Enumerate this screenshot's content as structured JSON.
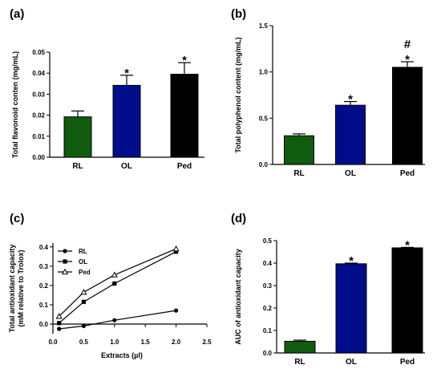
{
  "chart_data": [
    {
      "panel": "(a)",
      "type": "bar",
      "ylabel": "Total flavonoid conten (mg/mL)",
      "xlabel": "",
      "categories": [
        "RL",
        "OL",
        "Ped"
      ],
      "values": [
        0.0192,
        0.0342,
        0.0395
      ],
      "errors": [
        0.0028,
        0.0048,
        0.0055
      ],
      "colors": [
        "#0f5c0f",
        "#000c8a",
        "#000000"
      ],
      "annotations": [
        "",
        "*",
        "*"
      ],
      "ylim": [
        0,
        0.05
      ],
      "yticks": [
        0.0,
        0.01,
        0.02,
        0.03,
        0.04,
        0.05
      ],
      "ytick_labels": [
        "0.00",
        "0.01",
        "0.02",
        "0.03",
        "0.04",
        "0.05"
      ]
    },
    {
      "panel": "(b)",
      "type": "bar",
      "ylabel": "Total polyphenol content (mg/mL)",
      "xlabel": "",
      "categories": [
        "RL",
        "OL",
        "Ped"
      ],
      "values": [
        0.31,
        0.64,
        1.05
      ],
      "errors": [
        0.02,
        0.04,
        0.06
      ],
      "colors": [
        "#0f5c0f",
        "#000c8a",
        "#000000"
      ],
      "annotations": [
        "",
        "*",
        "#\n*"
      ],
      "ylim": [
        0,
        1.5
      ],
      "yticks": [
        0.0,
        0.5,
        1.0,
        1.5
      ],
      "ytick_labels": [
        "0.0",
        "0.5",
        "1.0",
        "1.5"
      ]
    },
    {
      "panel": "(c)",
      "type": "line",
      "ylabel": "Total antioxidant capacity\n(mM relative to Trolox)",
      "xlabel": "Extracts (µl)",
      "xlim": [
        0,
        2.5
      ],
      "ylim": [
        -0.05,
        0.42
      ],
      "xticks": [
        0.0,
        0.5,
        1.0,
        1.5,
        2.0,
        2.5
      ],
      "xtick_labels": [
        "0.0",
        "0.5",
        "1.0",
        "1.5",
        "2.0",
        "2.5"
      ],
      "yticks": [
        0.0,
        0.1,
        0.2,
        0.3,
        0.4
      ],
      "ytick_labels": [
        "0.0",
        "0.1",
        "0.2",
        "0.3",
        "0.4"
      ],
      "legend_position": "upper-left",
      "series": [
        {
          "name": "RL",
          "marker": "circle",
          "x": [
            0.1,
            0.5,
            1.0,
            2.0
          ],
          "y": [
            -0.025,
            -0.01,
            0.02,
            0.07
          ]
        },
        {
          "name": "OL",
          "marker": "square",
          "x": [
            0.1,
            0.5,
            1.0,
            2.0
          ],
          "y": [
            0.005,
            0.115,
            0.21,
            0.375
          ]
        },
        {
          "name": "Ped",
          "marker": "triangle",
          "x": [
            0.1,
            0.5,
            1.0,
            2.0
          ],
          "y": [
            0.04,
            0.165,
            0.255,
            0.39
          ]
        }
      ]
    },
    {
      "panel": "(d)",
      "type": "bar",
      "ylabel": "AUC of antioxidant capacity",
      "xlabel": "",
      "categories": [
        "RL",
        "OL",
        "Ped"
      ],
      "values": [
        0.052,
        0.397,
        0.468
      ],
      "errors": [
        0.005,
        0.003,
        0.002
      ],
      "colors": [
        "#0f5c0f",
        "#000c8a",
        "#000000"
      ],
      "annotations": [
        "",
        "*",
        "*"
      ],
      "ylim": [
        0,
        0.5
      ],
      "yticks": [
        0.0,
        0.1,
        0.2,
        0.3,
        0.4,
        0.5
      ],
      "ytick_labels": [
        "0.0",
        "0.1",
        "0.2",
        "0.3",
        "0.4",
        "0.5"
      ]
    }
  ]
}
